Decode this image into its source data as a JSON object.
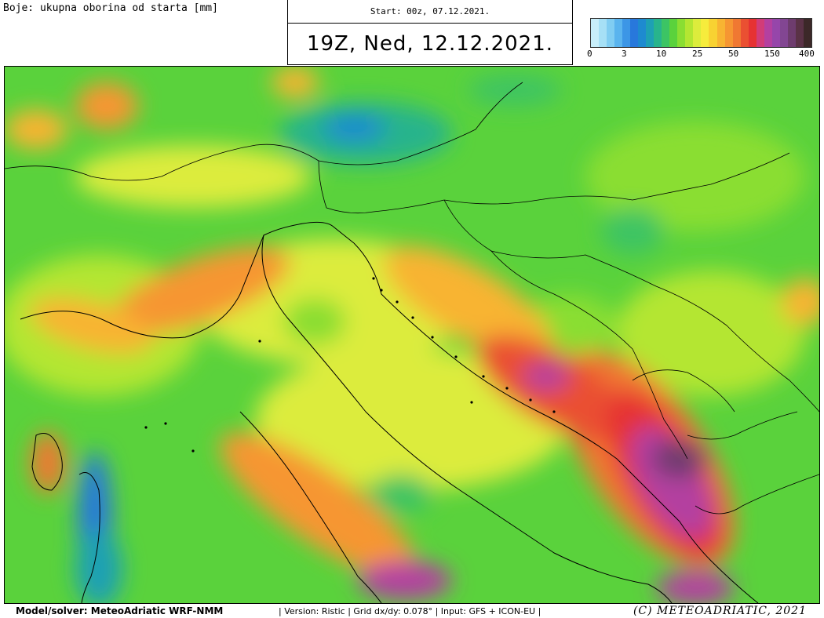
{
  "header": {
    "legend_label": "Boje: ukupna oborina od starta [mm]",
    "start_label": "Start: 00z, 07.12.2021.",
    "valid_time": "19Z, Ned, 12.12.2021."
  },
  "colorbar": {
    "colors": [
      "#c8eefa",
      "#a6e0f6",
      "#80cdf2",
      "#5ab4ee",
      "#3c96e6",
      "#2878dc",
      "#1e8ad0",
      "#1ea0b4",
      "#28b48c",
      "#3cc464",
      "#5ad23c",
      "#8ade32",
      "#b4e632",
      "#dcec3c",
      "#f6ec3c",
      "#f8d232",
      "#f8b432",
      "#f69632",
      "#f07832",
      "#ea5032",
      "#e63232",
      "#d23c78",
      "#b440a0",
      "#9646aa",
      "#824692",
      "#6e3c6e",
      "#5a3246",
      "#3c2828"
    ],
    "ticks": [
      "0",
      "3",
      "10",
      "25",
      "50",
      "150",
      "400"
    ]
  },
  "footer": {
    "model": "Model/solver: MeteoAdriatic WRF-NMM",
    "info": "| Version: Ristic | Grid dx/dy: 0.078° | Input: GFS + ICON-EU |",
    "copyright": "(C) METEOADRIATIC, 2021"
  }
}
